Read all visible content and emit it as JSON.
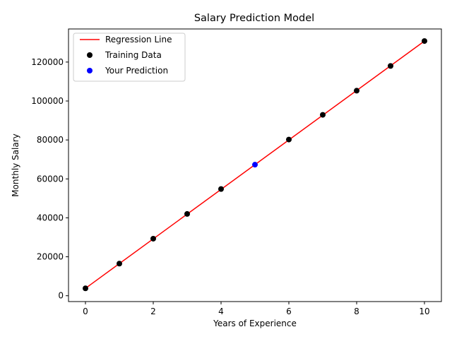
{
  "chart_data": {
    "type": "scatter",
    "title": "Salary Prediction Model",
    "xlabel": "Years of Experience",
    "ylabel": "Monthly Salary",
    "xlim": [
      -0.5,
      10.5
    ],
    "ylim": [
      -3000,
      137000
    ],
    "xticks": [
      0,
      2,
      4,
      6,
      8,
      10
    ],
    "yticks": [
      0,
      20000,
      40000,
      60000,
      80000,
      100000,
      120000
    ],
    "grid": false,
    "legend_position": "top-left",
    "series": [
      {
        "name": "Regression Line",
        "kind": "line",
        "color": "#ff0000",
        "x": [
          0,
          10
        ],
        "y": [
          3800,
          130800
        ]
      },
      {
        "name": "Training Data",
        "kind": "scatter",
        "color": "#000000",
        "x": [
          0,
          1,
          2,
          3,
          4,
          6,
          7,
          8,
          9,
          10
        ],
        "y": [
          3800,
          16500,
          29300,
          42000,
          54800,
          80200,
          92900,
          105300,
          118000,
          130800
        ]
      },
      {
        "name": "Your Prediction",
        "kind": "scatter",
        "color": "#0000ff",
        "x": [
          5
        ],
        "y": [
          67300
        ]
      }
    ]
  }
}
